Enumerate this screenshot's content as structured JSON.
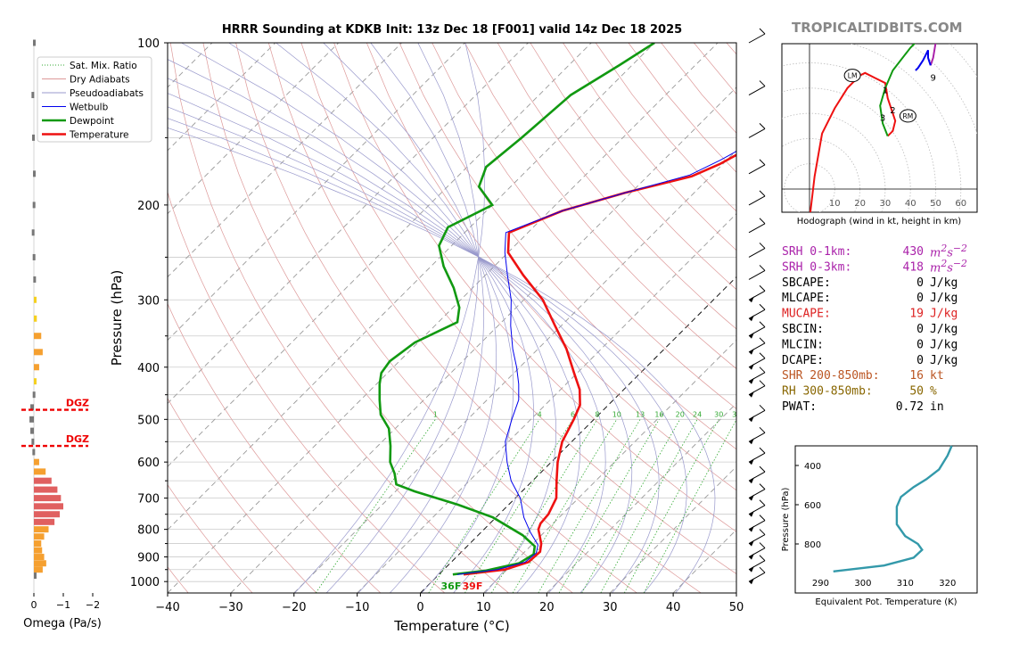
{
  "title": "HRRR Sounding at KDKB Init: 13z Dec 18 [F001] valid 14z Dec 18 2025",
  "watermark": "TROPICALTIDBITS.COM",
  "colors": {
    "temperature": "#ee1111",
    "dewpoint": "#119911",
    "wetbulb": "#0000ee",
    "dry_adiabat": "#dd9999",
    "pseudoadiabat": "#9999cc",
    "mixing_ratio": "#33aa33",
    "isotherm": "#aaaaaa",
    "dgz": "#ee0000",
    "srh": "#aa22aa",
    "mucape": "#dd2222",
    "shr": "#bb5522",
    "rh": "#886600",
    "theta_e": "#3399aa"
  },
  "chart_data": [
    {
      "type": "line",
      "id": "skewt",
      "title": "HRRR Sounding at KDKB Init: 13z Dec 18 [F001] valid 14z Dec 18 2025",
      "xlabel": "Temperature (°C)",
      "ylabel": "Pressure (hPa)",
      "xlim": [
        -40,
        50
      ],
      "ylim": [
        1050,
        100
      ],
      "yscale": "log",
      "x_ticks": [
        "−40",
        "−30",
        "−20",
        "−10",
        "0",
        "10",
        "20",
        "30",
        "40",
        "50"
      ],
      "y_ticks": [
        "100",
        "200",
        "300",
        "400",
        "500",
        "600",
        "700",
        "800",
        "900",
        "1000"
      ],
      "mixing_ratio_labels": [
        "1",
        "4",
        "6",
        "8",
        "10",
        "13",
        "16",
        "20",
        "24",
        "30",
        "36"
      ],
      "legend": {
        "placement": "upper-left",
        "entries": [
          "Sat. Mix. Ratio",
          "Dry Adiabats",
          "Pseudoadiabats",
          "Wetbulb",
          "Dewpoint",
          "Temperature"
        ]
      },
      "surface_labels": {
        "dewpoint": "36F",
        "temperature": "39F"
      },
      "series": [
        {
          "name": "Temperature",
          "points": [
            [
              3.9,
              970
            ],
            [
              9.7,
              950
            ],
            [
              12.2,
              920
            ],
            [
              12.4,
              880
            ],
            [
              11.3,
              850
            ],
            [
              8.6,
              800
            ],
            [
              8.0,
              780
            ],
            [
              7.8,
              750
            ],
            [
              6.5,
              700
            ],
            [
              3.8,
              650
            ],
            [
              1.0,
              600
            ],
            [
              -1.5,
              550
            ],
            [
              -3.2,
              500
            ],
            [
              -4.5,
              470
            ],
            [
              -7,
              440
            ],
            [
              -10.5,
              410
            ],
            [
              -15.5,
              370
            ],
            [
              -21,
              335
            ],
            [
              -27,
              300
            ],
            [
              -34,
              270
            ],
            [
              -40,
              245
            ],
            [
              -43,
              225
            ],
            [
              -38,
              205
            ],
            [
              -31,
              190
            ],
            [
              -23,
              177
            ],
            [
              -20.5,
              168
            ],
            [
              -19,
              160
            ],
            [
              -17,
              140
            ],
            [
              -14.5,
              125
            ],
            [
              -10,
              100
            ]
          ]
        },
        {
          "name": "Dewpoint",
          "points": [
            [
              2.2,
              970
            ],
            [
              6.7,
              955
            ],
            [
              10.9,
              925
            ],
            [
              11.8,
              890
            ],
            [
              10.7,
              860
            ],
            [
              7.0,
              820
            ],
            [
              -0.5,
              760
            ],
            [
              -8,
              720
            ],
            [
              -17,
              680
            ],
            [
              -21,
              660
            ],
            [
              -23,
              630
            ],
            [
              -25.5,
              600
            ],
            [
              -28,
              560
            ],
            [
              -31,
              520
            ],
            [
              -34.5,
              490
            ],
            [
              -37,
              460
            ],
            [
              -39.5,
              430
            ],
            [
              -41,
              410
            ],
            [
              -41.5,
              390
            ],
            [
              -40.5,
              360
            ],
            [
              -37,
              330
            ],
            [
              -39,
              310
            ],
            [
              -43,
              285
            ],
            [
              -48,
              260
            ],
            [
              -52,
              238
            ],
            [
              -53.5,
              220
            ],
            [
              -50,
              200
            ],
            [
              -55,
              185
            ],
            [
              -57,
              170
            ],
            [
              -56,
              150
            ],
            [
              -55,
              125
            ],
            [
              -52,
              110
            ],
            [
              -50,
              100
            ]
          ]
        },
        {
          "name": "Wetbulb",
          "points": [
            [
              2.9,
              970
            ],
            [
              8.5,
              950
            ],
            [
              11.7,
              920
            ],
            [
              12.0,
              885
            ],
            [
              11.0,
              855
            ],
            [
              7.8,
              810
            ],
            [
              4.4,
              760
            ],
            [
              0.8,
              700
            ],
            [
              -3.4,
              650
            ],
            [
              -7.0,
              600
            ],
            [
              -10.5,
              550
            ],
            [
              -13.0,
              500
            ],
            [
              -15.0,
              460
            ],
            [
              -17.5,
              430
            ],
            [
              -20.5,
              400
            ],
            [
              -24,
              370
            ],
            [
              -28,
              335
            ],
            [
              -32,
              300
            ],
            [
              -36.5,
              270
            ],
            [
              -40.5,
              245
            ],
            [
              -43.5,
              225
            ],
            [
              -38,
              205
            ],
            [
              -31,
              190
            ],
            [
              -23.5,
              176
            ],
            [
              -21,
              165
            ],
            [
              -19.5,
              157
            ],
            [
              -17.5,
              140
            ],
            [
              -14.5,
              122
            ],
            [
              -10.5,
              100
            ]
          ]
        }
      ],
      "wind_barb_levels_hpa": [
        100,
        125,
        150,
        175,
        200,
        225,
        250,
        275,
        300,
        325,
        350,
        375,
        400,
        425,
        450,
        500,
        550,
        600,
        650,
        700,
        750,
        800,
        850,
        900,
        950,
        1000
      ]
    },
    {
      "type": "bar",
      "id": "omega",
      "xlabel": "Omega (Pa/s)",
      "xlim": [
        0,
        -2
      ],
      "x_ticks": [
        "0",
        "−1",
        "−2"
      ],
      "dgz_label": "DGZ",
      "dgz_bounds_hpa": [
        480,
        560
      ],
      "levels_hpa": [
        100,
        125,
        150,
        175,
        200,
        225,
        250,
        275,
        300,
        325,
        350,
        375,
        400,
        425,
        450,
        475,
        500,
        525,
        550,
        575,
        600,
        625,
        650,
        675,
        700,
        725,
        750,
        775,
        800,
        825,
        850,
        875,
        900,
        925,
        950,
        975
      ],
      "values": [
        0.03,
        0.08,
        0.06,
        0.03,
        0.04,
        0.07,
        0.04,
        0.02,
        -0.02,
        -0.1,
        -0.25,
        -0.3,
        -0.18,
        -0.02,
        0.04,
        0.12,
        0.15,
        0.12,
        0.08,
        0.05,
        -0.18,
        -0.4,
        -0.6,
        -0.8,
        -0.92,
        -1.0,
        -0.88,
        -0.7,
        -0.5,
        -0.35,
        -0.25,
        -0.28,
        -0.35,
        -0.42,
        -0.3,
        0.0
      ]
    },
    {
      "type": "line",
      "id": "hodograph",
      "xlabel": "Hodograph (wind in kt, height in km)",
      "x_ticks": [
        "10",
        "20",
        "30",
        "40",
        "50",
        "60"
      ],
      "motion_labels": [
        "LM",
        "RM"
      ],
      "height_labels": [
        "1",
        "2",
        "3",
        "6",
        "9"
      ],
      "segments": [
        {
          "color_key": "temperature",
          "points": [
            [
              0,
              -12
            ],
            [
              2,
              5
            ],
            [
              5,
              22
            ],
            [
              10,
              32
            ],
            [
              15,
              40
            ],
            [
              20,
              45
            ],
            [
              22,
              46
            ],
            [
              26,
              44
            ],
            [
              30,
              42
            ],
            [
              31,
              36
            ],
            [
              33,
              30
            ],
            [
              34,
              27
            ],
            [
              33,
              23
            ],
            [
              31,
              21
            ]
          ]
        },
        {
          "color_key": "dewpoint",
          "points": [
            [
              31,
              21
            ],
            [
              29,
              26
            ],
            [
              28,
              33
            ],
            [
              30,
              40
            ],
            [
              33,
              47
            ],
            [
              40,
              56
            ],
            [
              45,
              61
            ]
          ]
        },
        {
          "color_key": "srh",
          "points": [
            [
              45,
              61
            ],
            [
              48,
              62
            ],
            [
              50,
              58
            ],
            [
              49,
              52
            ],
            [
              48,
              49
            ]
          ]
        },
        {
          "color_key": "wetbulb",
          "points": [
            [
              48,
              49
            ],
            [
              47,
              52
            ],
            [
              47,
              55
            ],
            [
              45,
              51
            ],
            [
              43,
              48
            ],
            [
              42,
              47
            ]
          ]
        }
      ]
    },
    {
      "type": "line",
      "id": "theta_e",
      "xlabel": "Equivalent Pot. Temperature (K)",
      "ylabel": "Pressure (hPa)",
      "xlim": [
        284,
        327
      ],
      "ylim": [
        1050,
        300
      ],
      "x_ticks": [
        "290",
        "300",
        "310",
        "320"
      ],
      "y_ticks": [
        "400",
        "600",
        "800"
      ],
      "points": [
        [
          321,
          300
        ],
        [
          320,
          350
        ],
        [
          318,
          420
        ],
        [
          315,
          470
        ],
        [
          312,
          510
        ],
        [
          309,
          560
        ],
        [
          308,
          610
        ],
        [
          308,
          700
        ],
        [
          310,
          760
        ],
        [
          313,
          800
        ],
        [
          314,
          830
        ],
        [
          312,
          870
        ],
        [
          305,
          910
        ],
        [
          293,
          940
        ]
      ]
    }
  ],
  "indices": [
    {
      "label": "SRH 0-1km:",
      "value": "430",
      "unit_html": "m<sup>2</sup>s<sup>−2</sup>",
      "color_key": "srh"
    },
    {
      "label": "SRH 0-3km:",
      "value": "418",
      "unit_html": "m<sup>2</sup>s<sup>−2</sup>",
      "color_key": "srh"
    },
    {
      "label": "SBCAPE:",
      "value": "0",
      "unit": "J/kg",
      "color_key": "black"
    },
    {
      "label": "MLCAPE:",
      "value": "0",
      "unit": "J/kg",
      "color_key": "black"
    },
    {
      "label": "MUCAPE:",
      "value": "19",
      "unit": "J/kg",
      "color_key": "mucape"
    },
    {
      "label": "SBCIN:",
      "value": "0",
      "unit": "J/kg",
      "color_key": "black"
    },
    {
      "label": "MLCIN:",
      "value": "0",
      "unit": "J/kg",
      "color_key": "black"
    },
    {
      "label": "DCAPE:",
      "value": "0",
      "unit": "J/kg",
      "color_key": "black"
    },
    {
      "label": "SHR 200-850mb:",
      "value": "16",
      "unit": "kt",
      "color_key": "shr"
    },
    {
      "label": "RH 300-850mb:",
      "value": "50",
      "unit": "%",
      "color_key": "rh"
    },
    {
      "label": "PWAT:",
      "value": "0.72",
      "unit": "in",
      "color_key": "black"
    }
  ]
}
